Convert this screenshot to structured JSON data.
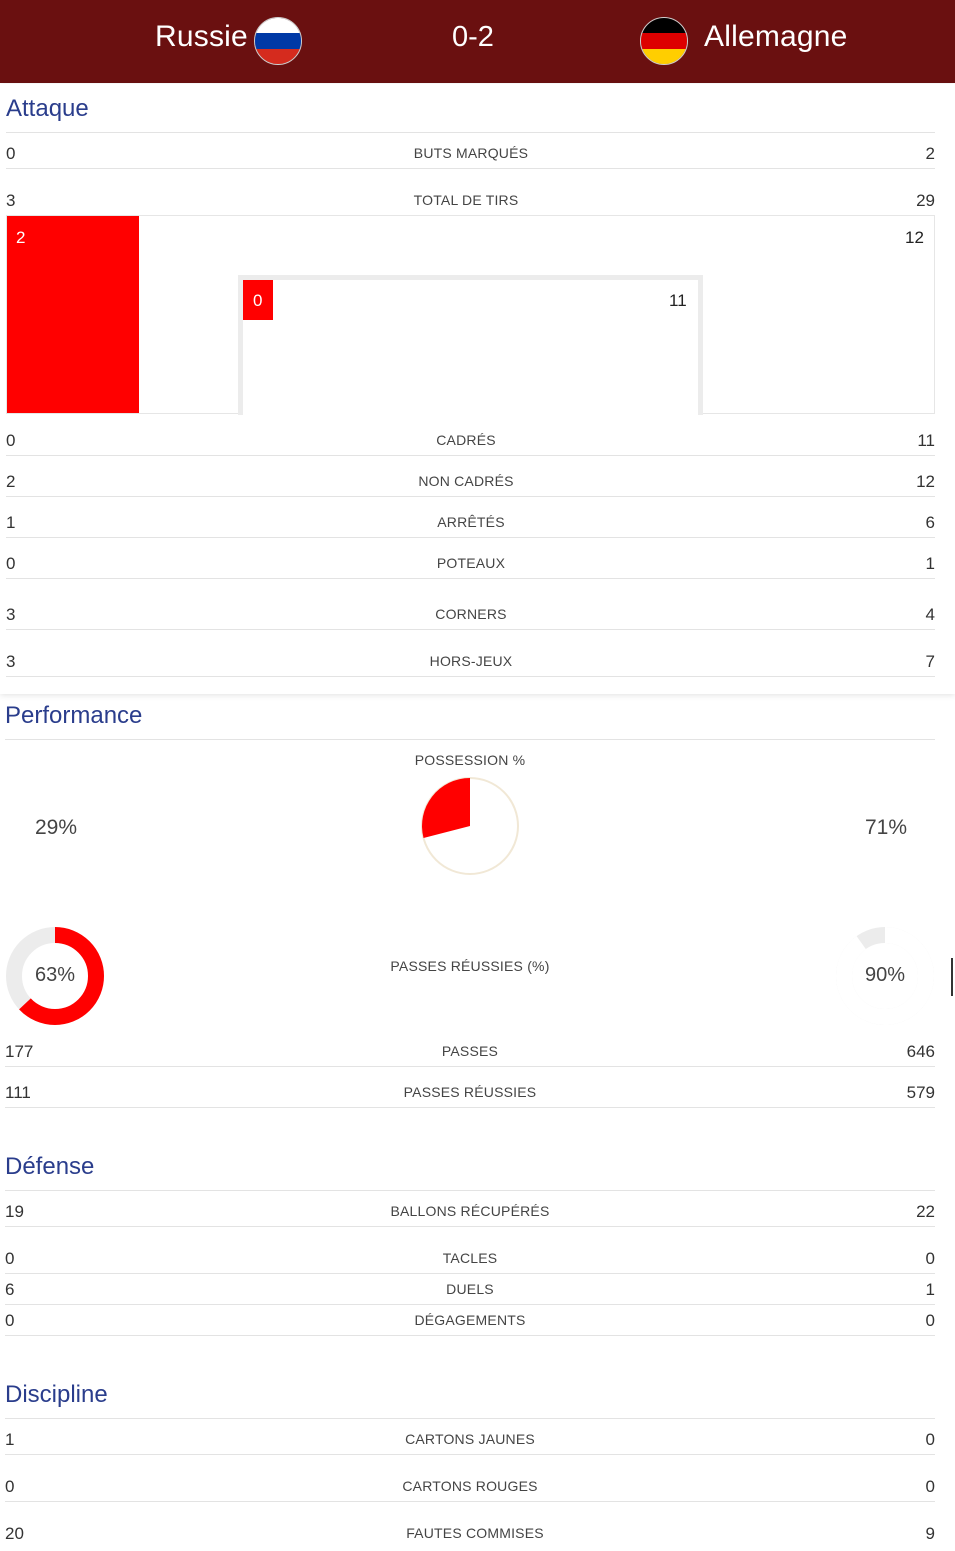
{
  "match": {
    "home": "Russie",
    "away": "Allemagne",
    "score": "0-2"
  },
  "colors": {
    "header_bg": "#6a1010",
    "home_bar": "#ff0000",
    "title_blue": "#2a3d8c",
    "flag_russia": [
      "#ffffff",
      "#0039a6",
      "#d52b1e"
    ],
    "flag_germany": [
      "#000000",
      "#dd0000",
      "#ffce00"
    ]
  },
  "attack": {
    "title": "Attaque",
    "goals": {
      "label": "BUTS MARQUÉS",
      "home": "0",
      "away": "2"
    },
    "total_shots": {
      "label": "TOTAL DE TIRS",
      "home": "3",
      "away": "29"
    },
    "shots_diagram": {
      "outside_home": "2",
      "outside_away": "12",
      "inside_home": "0",
      "inside_away": "11",
      "outside_home_share": 0.14,
      "inside_home_share": 0.065
    },
    "on_target": {
      "label": "CADRÉS",
      "home": "0",
      "away": "11"
    },
    "off_target": {
      "label": "NON CADRÉS",
      "home": "2",
      "away": "12"
    },
    "blocked": {
      "label": "ARRÊTÉS",
      "home": "1",
      "away": "6"
    },
    "posts": {
      "label": "POTEAUX",
      "home": "0",
      "away": "1"
    },
    "corners": {
      "label": "CORNERS",
      "home": "3",
      "away": "4"
    },
    "offsides": {
      "label": "HORS-JEUX",
      "home": "3",
      "away": "7"
    }
  },
  "performance": {
    "title": "Performance",
    "possession": {
      "label": "POSSESSION %",
      "home": "29%",
      "away": "71%",
      "home_value": 29,
      "away_value": 71
    },
    "pass_accuracy": {
      "label": "PASSES RÉUSSIES (%)",
      "home": "63%",
      "away": "90%",
      "home_value": 63,
      "away_value": 90
    },
    "passes": {
      "label": "PASSES",
      "home": "177",
      "away": "646"
    },
    "passes_completed": {
      "label": "PASSES RÉUSSIES",
      "home": "111",
      "away": "579"
    }
  },
  "defense": {
    "title": "Défense",
    "recoveries": {
      "label": "BALLONS RÉCUPÉRÉS",
      "home": "19",
      "away": "22"
    },
    "tackles": {
      "label": "TACLES",
      "home": "0",
      "away": "0"
    },
    "duels": {
      "label": "DUELS",
      "home": "6",
      "away": "1"
    },
    "clearances": {
      "label": "DÉGAGEMENTS",
      "home": "0",
      "away": "0"
    }
  },
  "discipline": {
    "title": "Discipline",
    "yellow": {
      "label": "CARTONS JAUNES",
      "home": "1",
      "away": "0"
    },
    "red": {
      "label": "CARTONS ROUGES",
      "home": "0",
      "away": "0"
    },
    "fouls": {
      "label": "FAUTES COMMISES",
      "home": "20",
      "away": "9"
    }
  }
}
